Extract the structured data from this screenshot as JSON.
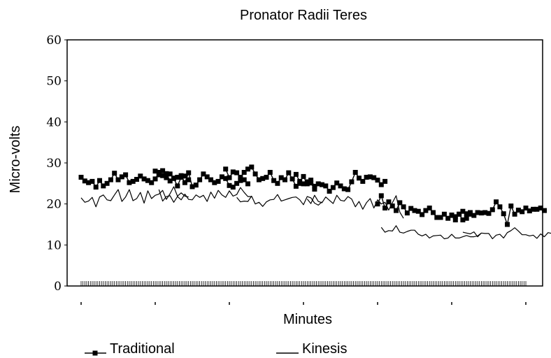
{
  "chart_data": {
    "type": "line",
    "title": "Pronator Radii Teres",
    "xlabel": "Minutes",
    "ylabel": "Micro-volts",
    "ylim": [
      0,
      60
    ],
    "yticks": [
      0,
      10,
      20,
      30,
      40,
      50,
      60
    ],
    "xlim": [
      0,
      120
    ],
    "grid": false,
    "legend_position": "bottom",
    "series": [
      {
        "name": "Traditional",
        "marker": "square",
        "color": "#000000",
        "segments": [
          {
            "x_start": 0,
            "values": [
              26.5,
              25.6,
              25.2,
              25.5,
              24.1,
              25.7,
              24.4,
              25.0,
              25.9,
              27.5,
              25.9,
              26.6,
              27.1,
              25.2,
              25.5,
              26.0,
              26.8,
              26.1,
              25.7,
              25.2,
              26.1,
              27.7,
              28.1,
              27.4,
              25.6,
              26.2,
              24.4,
              26.5,
              26.8,
              25.9
            ]
          },
          {
            "x_start": 20,
            "values": [
              28.0,
              27.1,
              26.9,
              26.4,
              27.3,
              26.3,
              26.5,
              26.9,
              25.2,
              27.6,
              24.2,
              24.6,
              25.9,
              27.3,
              26.6,
              25.9,
              25.2,
              25.5,
              26.6,
              26.2,
              24.5,
              24.1,
              25.0,
              25.7,
              25.9,
              24.9
            ]
          },
          {
            "x_start": 39,
            "values": [
              28.5,
              26.4,
              27.8,
              27.6,
              26.5,
              27.7,
              28.5,
              29.0,
              27.3,
              25.9,
              26.2,
              26.5,
              27.7,
              25.7,
              25.0,
              26.4,
              25.9,
              27.6,
              26.1,
              24.3,
              25.0,
              24.9,
              25.4,
              25.8,
              24.3
            ]
          },
          {
            "x_start": 58,
            "values": [
              27.2,
              25.5,
              26.7,
              24.9,
              25.1,
              23.6,
              24.9,
              24.7,
              24.4,
              23.1,
              24.0,
              25.1,
              24.4,
              23.7,
              23.5,
              25.4,
              27.7,
              26.3,
              25.5,
              26.5,
              26.6,
              26.4,
              25.8,
              24.7,
              25.5
            ]
          },
          {
            "x_start": 80,
            "values": [
              20.0,
              22.0,
              19.0,
              20.5,
              19.5,
              18.4,
              20.3,
              19.3,
              17.8,
              18.9,
              18.4,
              18.2,
              17.4,
              18.4,
              19.0,
              17.9,
              16.7,
              16.7,
              17.5,
              16.5,
              17.3,
              16.9,
              17.5,
              18.2,
              17.6,
              17.5
            ]
          },
          {
            "x_start": 100,
            "values": [
              17.2,
              16.1,
              17.5,
              16.1,
              16.5,
              17.9,
              17.2,
              17.9,
              17.8,
              17.9,
              17.7,
              18.6,
              20.5,
              19.3,
              17.6,
              15.0,
              19.5,
              17.5,
              18.5,
              18.1,
              19.0,
              18.3,
              18.7,
              18.7,
              19.0,
              18.4
            ]
          }
        ]
      },
      {
        "name": "Kinesis",
        "marker": "none",
        "color": "#000000",
        "segments": [
          {
            "x_start": 0,
            "values": [
              21.5,
              20.4,
              20.7,
              21.6,
              19.3,
              21.7,
              22.2,
              21.0,
              20.8,
              22.2,
              23.5,
              20.6,
              21.7,
              23.5,
              20.8,
              21.3,
              22.8,
              20.2,
              23.2,
              21.3,
              22.1,
              22.4,
              23.3,
              21.1,
              22.5,
              24.2,
              21.9,
              22.7,
              21.9,
              21.7
            ]
          },
          {
            "x_start": 21,
            "values": [
              23.5,
              20.7,
              21.8,
              22.0,
              20.4,
              21.8,
              21.0,
              22.4,
              21.1,
              21.0,
              22.2,
              21.6,
              22.1,
              20.6,
              22.9,
              21.4,
              23.3,
              22.2,
              21.6,
              23.2,
              21.9,
              22.3,
              24.0,
              22.8,
              21.8,
              21.8
            ]
          },
          {
            "x_start": 42,
            "values": [
              21.6,
              20.5,
              20.7,
              20.6,
              21.9,
              20.0,
              20.4,
              19.4,
              20.5,
              21.0,
              21.1,
              22.3,
              20.7,
              21.0,
              21.3,
              21.6,
              21.7,
              21.0,
              19.8,
              21.8,
              21.5,
              20.2,
              19.7,
              20.5
            ]
          },
          {
            "x_start": 61,
            "values": [
              21.2,
              20.1,
              22.1,
              20.6,
              20.3,
              21.7,
              20.9,
              20.1,
              22.1,
              20.9,
              20.7,
              21.8,
              21.2,
              19.3,
              20.6,
              18.7,
              20.3,
              21.3,
              19.0,
              21.0,
              20.0,
              20.4,
              18.5,
              20.3,
              22.0,
              18.0,
              16.5
            ]
          },
          {
            "x_start": 81,
            "values": [
              14.3,
              13.1,
              13.5,
              13.4,
              14.7,
              13.1,
              12.9,
              13.3,
              13.6,
              13.6,
              12.6,
              12.2,
              12.6,
              11.7,
              12.2,
              12.3,
              12.4,
              11.5,
              11.7,
              12.6,
              11.7,
              11.7,
              12.0,
              12.3,
              12.0,
              12.0,
              12.2,
              12.9
            ]
          },
          {
            "x_start": 103,
            "values": [
              13.1,
              12.9,
              12.7,
              13.2,
              12.0,
              12.9,
              12.8,
              12.8,
              11.5,
              12.4,
              12.6,
              11.7,
              13.0,
              13.5,
              14.2,
              13.4,
              12.5,
              12.5,
              12.2,
              12.4,
              11.6,
              12.7,
              12.0,
              13.0,
              12.8,
              12.8,
              12.9,
              11.7,
              12.5,
              12.6,
              13.1,
              11.9
            ]
          }
        ]
      }
    ]
  }
}
